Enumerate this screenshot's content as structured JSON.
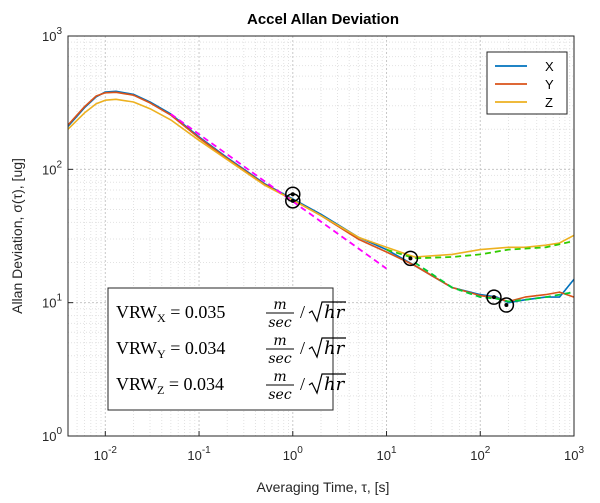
{
  "chart_data": {
    "type": "line",
    "title": "Accel Allan Deviation",
    "xlabel": "Averaging Time, τ, [s]",
    "ylabel": "Allan Deviation, σ(τ), [ug]",
    "xscale": "log",
    "yscale": "log",
    "xlim": [
      0.004,
      1000
    ],
    "ylim": [
      1,
      1000
    ],
    "x_ticks": [
      {
        "value": 0.01,
        "base": "10",
        "exp": "-2"
      },
      {
        "value": 0.1,
        "base": "10",
        "exp": "-1"
      },
      {
        "value": 1,
        "base": "10",
        "exp": "0"
      },
      {
        "value": 10,
        "base": "10",
        "exp": "1"
      },
      {
        "value": 100,
        "base": "10",
        "exp": "2"
      },
      {
        "value": 1000,
        "base": "10",
        "exp": "3"
      }
    ],
    "y_ticks": [
      {
        "value": 1,
        "base": "10",
        "exp": "0"
      },
      {
        "value": 10,
        "base": "10",
        "exp": "1"
      },
      {
        "value": 100,
        "base": "10",
        "exp": "2"
      },
      {
        "value": 1000,
        "base": "10",
        "exp": "3"
      }
    ],
    "grid": true,
    "minor_grid": true,
    "legend": {
      "position": "top-right",
      "entries": [
        "X",
        "Y",
        "Z"
      ]
    },
    "series": [
      {
        "name": "X",
        "color": "#0072BD",
        "points": [
          [
            0.004,
            210
          ],
          [
            0.006,
            290
          ],
          [
            0.008,
            350
          ],
          [
            0.01,
            380
          ],
          [
            0.013,
            385
          ],
          [
            0.02,
            365
          ],
          [
            0.03,
            320
          ],
          [
            0.05,
            260
          ],
          [
            0.1,
            175
          ],
          [
            0.2,
            122
          ],
          [
            0.5,
            78
          ],
          [
            1,
            60
          ],
          [
            2,
            46
          ],
          [
            5,
            31
          ],
          [
            10,
            25
          ],
          [
            20,
            19
          ],
          [
            50,
            13
          ],
          [
            100,
            11.5
          ],
          [
            150,
            11
          ],
          [
            200,
            10
          ],
          [
            300,
            10.5
          ],
          [
            500,
            11
          ],
          [
            700,
            11
          ],
          [
            1000,
            15
          ]
        ]
      },
      {
        "name": "Y",
        "color": "#D95319",
        "points": [
          [
            0.004,
            215
          ],
          [
            0.006,
            295
          ],
          [
            0.008,
            355
          ],
          [
            0.01,
            375
          ],
          [
            0.013,
            378
          ],
          [
            0.02,
            360
          ],
          [
            0.03,
            315
          ],
          [
            0.05,
            255
          ],
          [
            0.1,
            172
          ],
          [
            0.2,
            120
          ],
          [
            0.5,
            77
          ],
          [
            1,
            59
          ],
          [
            2,
            45
          ],
          [
            5,
            30
          ],
          [
            10,
            24
          ],
          [
            20,
            19
          ],
          [
            50,
            13
          ],
          [
            100,
            11.3
          ],
          [
            150,
            10.8
          ],
          [
            200,
            10.2
          ],
          [
            300,
            11
          ],
          [
            500,
            11.5
          ],
          [
            700,
            12
          ],
          [
            1000,
            11
          ]
        ]
      },
      {
        "name": "Z",
        "color": "#EDB120",
        "points": [
          [
            0.004,
            200
          ],
          [
            0.006,
            265
          ],
          [
            0.008,
            310
          ],
          [
            0.01,
            330
          ],
          [
            0.013,
            335
          ],
          [
            0.02,
            320
          ],
          [
            0.03,
            285
          ],
          [
            0.05,
            235
          ],
          [
            0.1,
            165
          ],
          [
            0.2,
            118
          ],
          [
            0.5,
            76
          ],
          [
            1,
            59
          ],
          [
            2,
            45
          ],
          [
            5,
            31
          ],
          [
            10,
            26
          ],
          [
            20,
            22
          ],
          [
            50,
            23
          ],
          [
            100,
            25
          ],
          [
            200,
            26
          ],
          [
            300,
            26
          ],
          [
            500,
            27
          ],
          [
            700,
            28
          ],
          [
            1000,
            32
          ]
        ]
      }
    ],
    "fit_lines": [
      {
        "name": "X-fit",
        "color": "#00CC33",
        "points": [
          [
            20,
            20
          ],
          [
            50,
            13
          ],
          [
            100,
            11
          ],
          [
            150,
            10.7
          ],
          [
            200,
            10.2
          ],
          [
            300,
            10.5
          ],
          [
            500,
            11
          ],
          [
            1000,
            12
          ]
        ]
      },
      {
        "name": "Z-fit",
        "color": "#33CC00",
        "points": [
          [
            10,
            25
          ],
          [
            20,
            21.5
          ],
          [
            50,
            22
          ],
          [
            100,
            23
          ],
          [
            200,
            25
          ],
          [
            500,
            26
          ],
          [
            1000,
            29
          ]
        ]
      },
      {
        "name": "VRW-fit",
        "color": "#FF00FF",
        "points": [
          [
            0.05,
            260
          ],
          [
            10,
            18
          ]
        ]
      }
    ],
    "markers": [
      {
        "x": 1.0,
        "y": 65
      },
      {
        "x": 1.0,
        "y": 58
      },
      {
        "x": 18,
        "y": 21.5
      },
      {
        "x": 140,
        "y": 11
      },
      {
        "x": 190,
        "y": 9.6
      }
    ],
    "annotations": [
      {
        "label": "VRW",
        "sub": "X",
        "value": "= 0.035",
        "num": "m",
        "den": "sec",
        "root": "hr"
      },
      {
        "label": "VRW",
        "sub": "Y",
        "value": "= 0.034",
        "num": "m",
        "den": "sec",
        "root": "hr"
      },
      {
        "label": "VRW",
        "sub": "Z",
        "value": "= 0.034",
        "num": "m",
        "den": "sec",
        "root": "hr"
      }
    ]
  }
}
